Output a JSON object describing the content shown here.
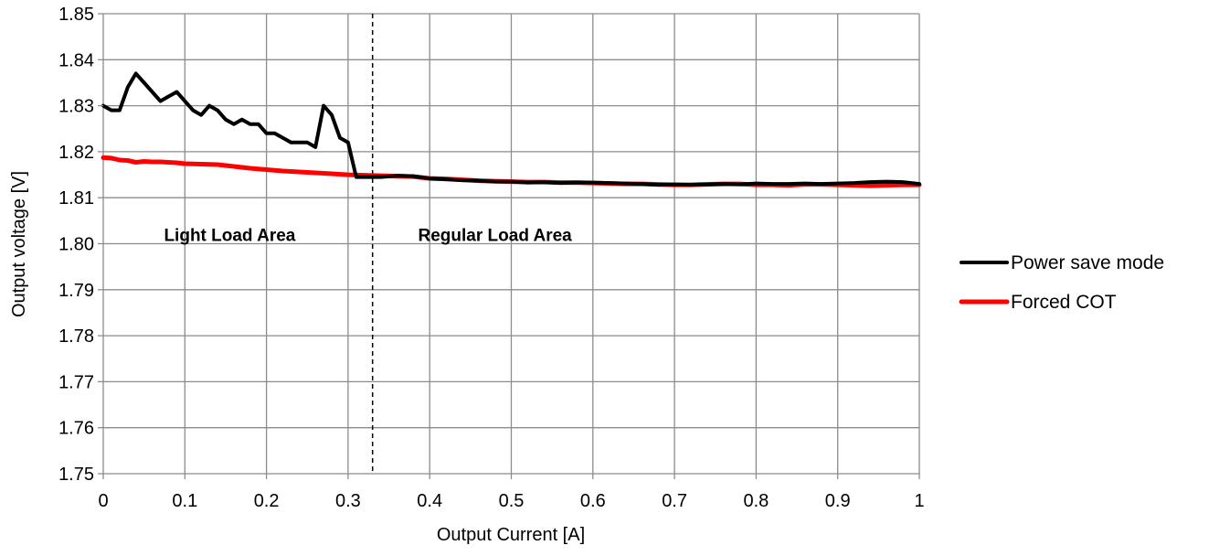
{
  "chart_data": {
    "type": "line",
    "xlabel": "Output Current [A]",
    "ylabel": "Output voltage [V]",
    "xlim": [
      0,
      1
    ],
    "ylim": [
      1.75,
      1.85
    ],
    "xticks": [
      0,
      0.1,
      0.2,
      0.3,
      0.4,
      0.5,
      0.6,
      0.7,
      0.8,
      0.9,
      1
    ],
    "xtick_labels": [
      "0",
      "0.1",
      "0.2",
      "0.3",
      "0.4",
      "0.5",
      "0.6",
      "0.7",
      "0.8",
      "0.9",
      "1"
    ],
    "yticks": [
      1.75,
      1.76,
      1.77,
      1.78,
      1.79,
      1.8,
      1.81,
      1.82,
      1.83,
      1.84,
      1.85
    ],
    "ytick_labels": [
      "1.75",
      "1.76",
      "1.77",
      "1.78",
      "1.79",
      "1.80",
      "1.81",
      "1.82",
      "1.83",
      "1.84",
      "1.85"
    ],
    "grid": true,
    "legend_position": "right",
    "divider_x": 0.33,
    "annotations": [
      {
        "text": "Light Load Area",
        "x": 0.155,
        "y": 1.802
      },
      {
        "text": "Regular Load Area",
        "x": 0.48,
        "y": 1.802
      }
    ],
    "series": [
      {
        "name": "Power save mode",
        "color": "#000000",
        "x": [
          0,
          0.01,
          0.02,
          0.03,
          0.04,
          0.05,
          0.06,
          0.07,
          0.08,
          0.09,
          0.1,
          0.11,
          0.12,
          0.13,
          0.14,
          0.15,
          0.16,
          0.17,
          0.18,
          0.19,
          0.2,
          0.21,
          0.22,
          0.23,
          0.24,
          0.25,
          0.26,
          0.27,
          0.28,
          0.29,
          0.3,
          0.31,
          0.32,
          0.34,
          0.36,
          0.38,
          0.4,
          0.42,
          0.44,
          0.46,
          0.48,
          0.5,
          0.52,
          0.54,
          0.56,
          0.58,
          0.6,
          0.62,
          0.64,
          0.66,
          0.68,
          0.7,
          0.72,
          0.74,
          0.76,
          0.78,
          0.8,
          0.82,
          0.84,
          0.86,
          0.88,
          0.9,
          0.92,
          0.94,
          0.96,
          0.98,
          1.0
        ],
        "values": [
          1.83,
          1.829,
          1.829,
          1.834,
          1.837,
          1.835,
          1.833,
          1.831,
          1.832,
          1.833,
          1.831,
          1.829,
          1.828,
          1.83,
          1.829,
          1.827,
          1.826,
          1.827,
          1.826,
          1.826,
          1.824,
          1.824,
          1.823,
          1.822,
          1.822,
          1.822,
          1.821,
          1.83,
          1.828,
          1.823,
          1.822,
          1.8145,
          1.8145,
          1.8145,
          1.8148,
          1.8147,
          1.8142,
          1.814,
          1.8138,
          1.8137,
          1.8135,
          1.8135,
          1.8133,
          1.8134,
          1.8132,
          1.8133,
          1.8133,
          1.8132,
          1.8131,
          1.813,
          1.8128,
          1.8129,
          1.8128,
          1.8129,
          1.813,
          1.8129,
          1.8131,
          1.813,
          1.813,
          1.8131,
          1.813,
          1.8131,
          1.8132,
          1.8134,
          1.8135,
          1.8134,
          1.813
        ]
      },
      {
        "name": "Forced COT",
        "color": "#ff0000",
        "x": [
          0,
          0.01,
          0.02,
          0.03,
          0.04,
          0.05,
          0.06,
          0.07,
          0.08,
          0.09,
          0.1,
          0.12,
          0.14,
          0.16,
          0.18,
          0.2,
          0.22,
          0.24,
          0.26,
          0.28,
          0.3,
          0.32,
          0.34,
          0.36,
          0.38,
          0.4,
          0.42,
          0.44,
          0.46,
          0.48,
          0.5,
          0.52,
          0.54,
          0.56,
          0.58,
          0.6,
          0.62,
          0.64,
          0.66,
          0.68,
          0.7,
          0.72,
          0.74,
          0.76,
          0.78,
          0.8,
          0.82,
          0.84,
          0.86,
          0.88,
          0.9,
          0.92,
          0.94,
          0.96,
          0.98,
          1.0
        ],
        "values": [
          1.8187,
          1.8186,
          1.8182,
          1.8181,
          1.8177,
          1.8179,
          1.8178,
          1.8178,
          1.8177,
          1.8176,
          1.8174,
          1.8173,
          1.8172,
          1.8168,
          1.8164,
          1.8161,
          1.8158,
          1.8156,
          1.8154,
          1.8152,
          1.815,
          1.8149,
          1.8148,
          1.8147,
          1.8146,
          1.8142,
          1.8141,
          1.8139,
          1.8137,
          1.8136,
          1.8135,
          1.8134,
          1.8134,
          1.8133,
          1.8133,
          1.8132,
          1.8131,
          1.813,
          1.813,
          1.8129,
          1.8128,
          1.8128,
          1.8129,
          1.813,
          1.813,
          1.8128,
          1.8128,
          1.8127,
          1.8129,
          1.8129,
          1.8128,
          1.8127,
          1.8126,
          1.8127,
          1.8128,
          1.8128
        ]
      }
    ]
  }
}
